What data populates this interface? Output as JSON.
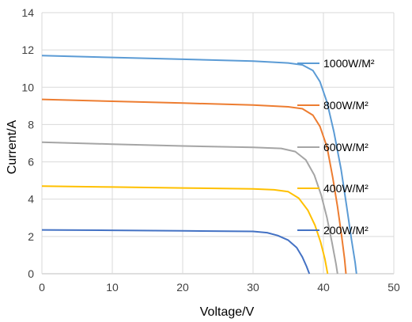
{
  "chart_data": {
    "type": "line",
    "title": "",
    "xlabel": "Voltage/V",
    "ylabel": "Current/A",
    "xlim": [
      0,
      50
    ],
    "ylim": [
      0,
      14
    ],
    "x_ticks": [
      "0",
      "10",
      "20",
      "30",
      "40",
      "50"
    ],
    "y_ticks": [
      "0",
      "2",
      "4",
      "6",
      "8",
      "10",
      "12",
      "14"
    ],
    "grid": true,
    "legend_placement": "right, inline label next to each curve",
    "series": [
      {
        "name": "1000W/M²",
        "color": "#5b9bd5",
        "points": [
          [
            0,
            11.7
          ],
          [
            10,
            11.6
          ],
          [
            20,
            11.5
          ],
          [
            30,
            11.4
          ],
          [
            35,
            11.3
          ],
          [
            37,
            11.2
          ],
          [
            38.5,
            10.9
          ],
          [
            39.5,
            10.3
          ],
          [
            40.5,
            9.2
          ],
          [
            41.5,
            7.6
          ],
          [
            42.5,
            5.6
          ],
          [
            43.3,
            3.6
          ],
          [
            44,
            1.8
          ],
          [
            44.5,
            0.6
          ],
          [
            44.7,
            0
          ]
        ]
      },
      {
        "name": "800W/M²",
        "color": "#ed7d31",
        "points": [
          [
            0,
            9.35
          ],
          [
            10,
            9.25
          ],
          [
            20,
            9.15
          ],
          [
            30,
            9.05
          ],
          [
            35,
            8.95
          ],
          [
            37,
            8.85
          ],
          [
            38.5,
            8.5
          ],
          [
            39.5,
            7.9
          ],
          [
            40.5,
            6.8
          ],
          [
            41.3,
            5.2
          ],
          [
            42,
            3.6
          ],
          [
            42.6,
            2.0
          ],
          [
            43,
            0.8
          ],
          [
            43.2,
            0
          ]
        ]
      },
      {
        "name": "600W/M²",
        "color": "#a5a5a5",
        "points": [
          [
            0,
            7.05
          ],
          [
            10,
            6.95
          ],
          [
            20,
            6.85
          ],
          [
            30,
            6.78
          ],
          [
            34,
            6.72
          ],
          [
            36,
            6.55
          ],
          [
            37.5,
            6.1
          ],
          [
            38.7,
            5.3
          ],
          [
            39.7,
            4.2
          ],
          [
            40.5,
            3.0
          ],
          [
            41.2,
            1.7
          ],
          [
            41.8,
            0.5
          ],
          [
            42,
            0
          ]
        ]
      },
      {
        "name": "400W/M²",
        "color": "#ffc000",
        "points": [
          [
            0,
            4.7
          ],
          [
            10,
            4.65
          ],
          [
            20,
            4.6
          ],
          [
            30,
            4.55
          ],
          [
            33,
            4.5
          ],
          [
            35,
            4.4
          ],
          [
            36.5,
            4.05
          ],
          [
            37.8,
            3.4
          ],
          [
            38.8,
            2.6
          ],
          [
            39.6,
            1.7
          ],
          [
            40.2,
            0.8
          ],
          [
            40.6,
            0
          ]
        ]
      },
      {
        "name": "200W/M²",
        "color": "#4472c4",
        "points": [
          [
            0,
            2.35
          ],
          [
            10,
            2.33
          ],
          [
            20,
            2.3
          ],
          [
            30,
            2.27
          ],
          [
            32,
            2.2
          ],
          [
            33.5,
            2.05
          ],
          [
            35,
            1.8
          ],
          [
            36.2,
            1.4
          ],
          [
            37,
            0.9
          ],
          [
            37.6,
            0.4
          ],
          [
            38,
            0
          ]
        ]
      }
    ],
    "legend": [
      {
        "label": "1000W/M²",
        "color": "#5b9bd5"
      },
      {
        "label": "800W/M²",
        "color": "#ed7d31"
      },
      {
        "label": "600W/M²",
        "color": "#a5a5a5"
      },
      {
        "label": "400W/M²",
        "color": "#ffc000"
      },
      {
        "label": "200W/M²",
        "color": "#4472c4"
      }
    ]
  }
}
